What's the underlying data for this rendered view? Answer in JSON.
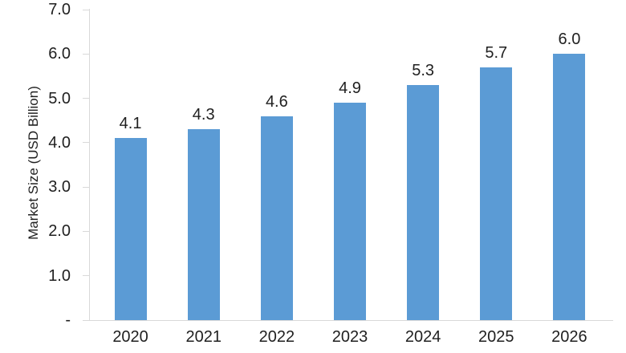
{
  "chart_data": {
    "type": "bar",
    "title": "",
    "ylabel": "Market Size (USD Billion)",
    "xlabel": "",
    "categories": [
      "2020",
      "2021",
      "2022",
      "2023",
      "2024",
      "2025",
      "2026"
    ],
    "values": [
      4.1,
      4.3,
      4.6,
      4.9,
      5.3,
      5.7,
      6.0
    ],
    "data_labels": [
      "4.1",
      "4.3",
      "4.6",
      "4.9",
      "5.3",
      "5.7",
      "6.0"
    ],
    "ylim": [
      0,
      7
    ],
    "ytick_interval": 1.0,
    "yticks": [
      {
        "value": 7,
        "label": "7.0"
      },
      {
        "value": 6,
        "label": "6.0"
      },
      {
        "value": 5,
        "label": "5.0"
      },
      {
        "value": 4,
        "label": "4.0"
      },
      {
        "value": 3,
        "label": "3.0"
      },
      {
        "value": 2,
        "label": "2.0"
      },
      {
        "value": 1,
        "label": "1.0"
      },
      {
        "value": 0,
        "label": "-"
      }
    ],
    "grid": false,
    "legend": "none",
    "bar_color": "#5B9BD5",
    "axis_line_color": "#D9D9D9",
    "text_color": "#1f1f1f"
  }
}
